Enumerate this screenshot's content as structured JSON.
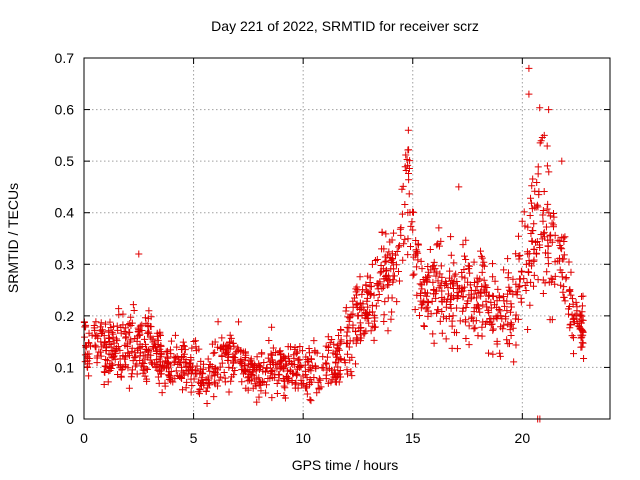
{
  "chart_data": {
    "type": "scatter",
    "title": "Day 221 of 2022, SRMTID for receiver scrz",
    "xlabel": "GPS time / hours",
    "ylabel": "SRMTID / TECUs",
    "xlim": [
      0,
      24
    ],
    "ylim": [
      0,
      0.7
    ],
    "xticks": [
      0,
      5,
      10,
      15,
      20
    ],
    "xtick_labels": [
      "0",
      "5",
      "10",
      "15",
      "20"
    ],
    "yticks": [
      0,
      0.1,
      0.2,
      0.3,
      0.4,
      0.5,
      0.6,
      0.7
    ],
    "ytick_labels": [
      "0",
      "0.1",
      "0.2",
      "0.3",
      "0.4",
      "0.5",
      "0.6",
      "0.7"
    ],
    "grid": true,
    "marker": "+",
    "marker_color": "#e00000",
    "series": [
      {
        "name": "SRMTID",
        "x": [
          0.0,
          0.2,
          0.4,
          0.6,
          0.8,
          1.0,
          1.2,
          1.4,
          1.6,
          1.8,
          2.0,
          2.2,
          2.4,
          2.6,
          2.8,
          3.0,
          3.2,
          3.4,
          3.6,
          3.8,
          4.0,
          4.2,
          4.4,
          4.6,
          4.8,
          5.0,
          5.2,
          5.4,
          5.6,
          5.8,
          6.0,
          6.2,
          6.4,
          6.6,
          6.8,
          7.0,
          7.2,
          7.4,
          7.6,
          7.8,
          8.0,
          8.2,
          8.4,
          8.6,
          8.8,
          9.0,
          9.2,
          9.4,
          9.6,
          9.8,
          10.0,
          10.2,
          10.4,
          10.6,
          10.8,
          11.0,
          11.2,
          11.4,
          11.6,
          11.8,
          12.0,
          12.2,
          12.4,
          12.6,
          12.8,
          13.0,
          13.2,
          13.4,
          13.6,
          13.8,
          14.0,
          14.2,
          14.4,
          14.6,
          14.8,
          15.0,
          15.2,
          15.4,
          15.6,
          15.8,
          16.0,
          16.2,
          16.4,
          16.6,
          16.8,
          17.0,
          17.2,
          17.4,
          17.6,
          17.8,
          18.0,
          18.2,
          18.4,
          18.6,
          18.8,
          19.0,
          19.2,
          19.4,
          19.6,
          19.8,
          20.0,
          20.2,
          20.4,
          20.6,
          20.8,
          21.0,
          21.2,
          21.4,
          21.6,
          21.8,
          22.0,
          22.2,
          22.4,
          22.6,
          22.8
        ],
        "y": [
          0.16,
          0.14,
          0.17,
          0.13,
          0.15,
          0.12,
          0.14,
          0.13,
          0.15,
          0.12,
          0.14,
          0.13,
          0.16,
          0.13,
          0.12,
          0.14,
          0.13,
          0.12,
          0.11,
          0.1,
          0.12,
          0.11,
          0.1,
          0.12,
          0.1,
          0.11,
          0.09,
          0.08,
          0.07,
          0.09,
          0.11,
          0.12,
          0.13,
          0.12,
          0.11,
          0.12,
          0.1,
          0.11,
          0.09,
          0.1,
          0.08,
          0.09,
          0.1,
          0.12,
          0.11,
          0.1,
          0.09,
          0.11,
          0.1,
          0.09,
          0.08,
          0.09,
          0.11,
          0.1,
          0.09,
          0.1,
          0.12,
          0.11,
          0.1,
          0.12,
          0.14,
          0.17,
          0.19,
          0.2,
          0.22,
          0.21,
          0.23,
          0.25,
          0.27,
          0.29,
          0.31,
          0.3,
          0.32,
          0.42,
          0.48,
          0.36,
          0.27,
          0.25,
          0.24,
          0.26,
          0.25,
          0.27,
          0.24,
          0.23,
          0.25,
          0.22,
          0.24,
          0.26,
          0.25,
          0.23,
          0.24,
          0.25,
          0.22,
          0.21,
          0.23,
          0.22,
          0.24,
          0.23,
          0.21,
          0.25,
          0.28,
          0.3,
          0.32,
          0.36,
          0.44,
          0.4,
          0.35,
          0.34,
          0.33,
          0.3,
          0.26,
          0.22,
          0.18,
          0.17,
          0.16
        ],
        "spread": [
          0.04,
          0.05,
          0.05,
          0.04,
          0.05,
          0.04,
          0.04,
          0.04,
          0.05,
          0.05,
          0.06,
          0.07,
          0.07,
          0.06,
          0.06,
          0.07,
          0.05,
          0.05,
          0.04,
          0.04,
          0.05,
          0.04,
          0.05,
          0.04,
          0.04,
          0.04,
          0.04,
          0.03,
          0.03,
          0.04,
          0.05,
          0.06,
          0.05,
          0.05,
          0.04,
          0.05,
          0.04,
          0.04,
          0.04,
          0.04,
          0.04,
          0.04,
          0.05,
          0.06,
          0.05,
          0.05,
          0.04,
          0.05,
          0.04,
          0.04,
          0.04,
          0.04,
          0.05,
          0.05,
          0.04,
          0.05,
          0.05,
          0.05,
          0.04,
          0.06,
          0.06,
          0.06,
          0.07,
          0.06,
          0.06,
          0.06,
          0.07,
          0.07,
          0.07,
          0.07,
          0.08,
          0.08,
          0.08,
          0.1,
          0.12,
          0.1,
          0.08,
          0.07,
          0.07,
          0.08,
          0.08,
          0.08,
          0.07,
          0.07,
          0.08,
          0.07,
          0.08,
          0.09,
          0.08,
          0.07,
          0.07,
          0.08,
          0.07,
          0.07,
          0.07,
          0.07,
          0.08,
          0.07,
          0.07,
          0.08,
          0.09,
          0.1,
          0.11,
          0.12,
          0.14,
          0.13,
          0.11,
          0.1,
          0.1,
          0.09,
          0.08,
          0.07,
          0.05,
          0.05,
          0.05
        ],
        "outliers": [
          {
            "x": 20.3,
            "y": 0.68
          },
          {
            "x": 20.3,
            "y": 0.63
          },
          {
            "x": 14.8,
            "y": 0.56
          },
          {
            "x": 21.2,
            "y": 0.6
          },
          {
            "x": 21.0,
            "y": 0.55
          },
          {
            "x": 21.8,
            "y": 0.5
          },
          {
            "x": 17.1,
            "y": 0.45
          },
          {
            "x": 2.5,
            "y": 0.32
          },
          {
            "x": 20.7,
            "y": 0.0
          },
          {
            "x": 20.8,
            "y": 0.0
          }
        ]
      }
    ]
  }
}
